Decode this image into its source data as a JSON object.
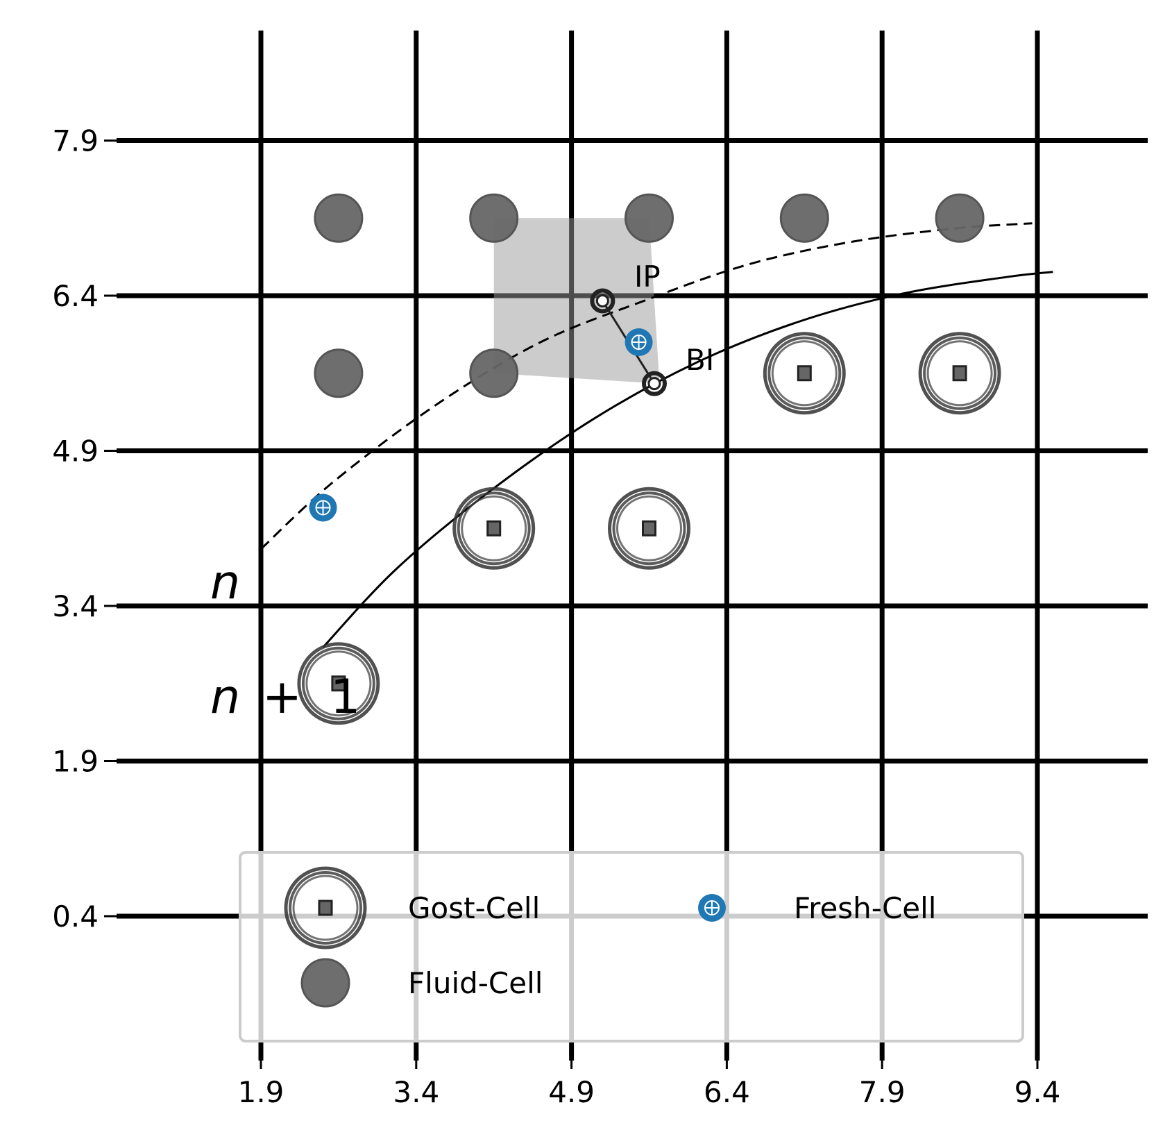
{
  "chart_data": {
    "type": "scatter",
    "x_ticks": [
      "1.9",
      "3.4",
      "4.9",
      "6.4",
      "7.9",
      "9.4"
    ],
    "y_ticks": [
      "0.4",
      "1.9",
      "3.4",
      "4.9",
      "6.4",
      "7.9"
    ],
    "xlim": [
      0.4,
      10.5
    ],
    "ylim": [
      -0.9,
      9.0
    ],
    "grid": true,
    "series": [
      {
        "name": "Gost-Cell",
        "marker": "double-ring-square",
        "color": "#333333",
        "points": [
          [
            2.65,
            2.65
          ],
          [
            4.15,
            4.15
          ],
          [
            5.65,
            4.15
          ],
          [
            7.15,
            5.65
          ],
          [
            8.65,
            5.65
          ]
        ]
      },
      {
        "name": "Fluid-Cell",
        "marker": "filled-circle",
        "color": "#666666",
        "points": [
          [
            2.65,
            5.65
          ],
          [
            4.15,
            5.65
          ],
          [
            2.65,
            7.15
          ],
          [
            4.15,
            7.15
          ],
          [
            5.65,
            7.15
          ],
          [
            7.15,
            7.15
          ],
          [
            8.65,
            7.15
          ]
        ]
      },
      {
        "name": "Fresh-Cell",
        "marker": "circle-plus",
        "color": "#1f77b4",
        "points": [
          [
            2.5,
            4.35
          ],
          [
            5.55,
            5.95
          ]
        ]
      }
    ],
    "curves": [
      {
        "label": "n",
        "style": "dashed",
        "points": [
          [
            1.9,
            3.95
          ],
          [
            2.6,
            4.6
          ],
          [
            3.6,
            5.35
          ],
          [
            4.6,
            5.95
          ],
          [
            5.6,
            6.35
          ],
          [
            6.6,
            6.7
          ],
          [
            7.6,
            6.92
          ],
          [
            8.6,
            7.05
          ],
          [
            9.35,
            7.1
          ]
        ]
      },
      {
        "label": "n + 1",
        "style": "solid",
        "points": [
          [
            2.5,
            3.0
          ],
          [
            3.2,
            3.75
          ],
          [
            4.1,
            4.5
          ],
          [
            5.1,
            5.2
          ],
          [
            6.1,
            5.75
          ],
          [
            7.1,
            6.15
          ],
          [
            8.1,
            6.42
          ],
          [
            9.1,
            6.58
          ],
          [
            9.55,
            6.63
          ]
        ]
      }
    ],
    "shaded_region": [
      [
        4.15,
        7.15
      ],
      [
        5.65,
        7.15
      ],
      [
        5.75,
        5.55
      ],
      [
        4.15,
        5.65
      ]
    ],
    "segment": {
      "from": [
        5.2,
        6.35
      ],
      "to": [
        5.7,
        5.55
      ]
    },
    "annotations": [
      {
        "text": "IP",
        "at": [
          5.2,
          6.35
        ]
      },
      {
        "text": "BI",
        "at": [
          5.7,
          5.55
        ]
      }
    ],
    "curve_labels": {
      "n": "n",
      "n_plus_1_var": "n",
      "n_plus_1_op": "+",
      "n_plus_1_num": "1"
    },
    "legend": {
      "placement": "lower center",
      "columns": 2,
      "entries": [
        "Gost-Cell",
        "Fluid-Cell",
        "Fresh-Cell"
      ]
    }
  }
}
